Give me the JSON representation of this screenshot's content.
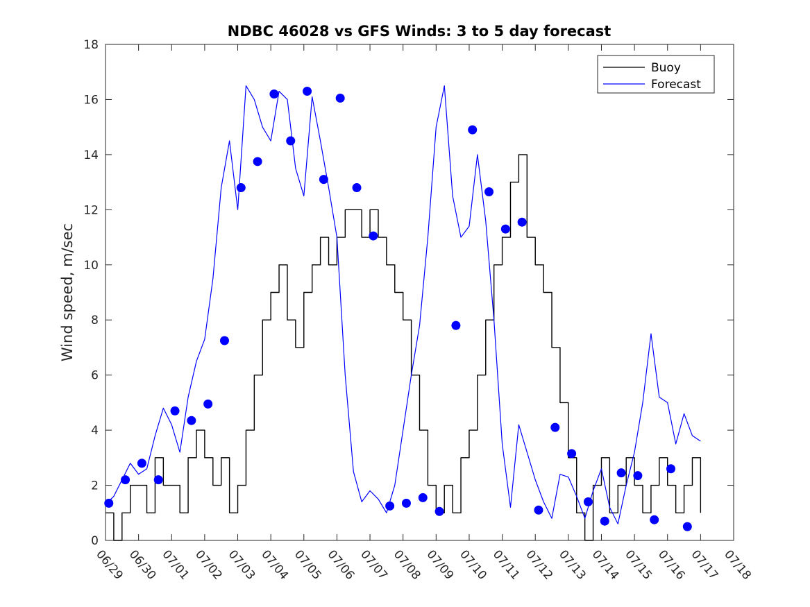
{
  "chart_data": {
    "type": "line",
    "title": "NDBC 46028 vs GFS Winds: 3 to 5 day forecast",
    "xlabel": "",
    "ylabel": "Wind speed, m/sec",
    "x_unit": "day",
    "x_ticks": [
      "06/29",
      "06/30",
      "07/01",
      "07/02",
      "07/03",
      "07/04",
      "07/05",
      "07/06",
      "07/07",
      "07/08",
      "07/09",
      "07/10",
      "07/11",
      "07/12",
      "07/13",
      "07/14",
      "07/15",
      "07/16",
      "07/17",
      "07/18"
    ],
    "xlim": [
      0,
      19
    ],
    "ylim": [
      0,
      18
    ],
    "y_ticks": [
      0,
      2,
      4,
      6,
      8,
      10,
      12,
      14,
      16,
      18
    ],
    "grid": false,
    "legend": {
      "placement": "top-right",
      "entries": [
        "Buoy",
        "Forecast"
      ]
    },
    "colors": {
      "buoy": "#000000",
      "forecast": "#0000ff",
      "axis": "#262626"
    },
    "series": [
      {
        "name": "Buoy",
        "step": true,
        "x": [
          0.0,
          0.25,
          0.5,
          0.75,
          1.0,
          1.25,
          1.5,
          1.75,
          2.0,
          2.25,
          2.5,
          2.75,
          3.0,
          3.25,
          3.5,
          3.75,
          4.0,
          4.25,
          4.5,
          4.75,
          5.0,
          5.25,
          5.5,
          5.75,
          6.0,
          6.25,
          6.5,
          6.75,
          7.0,
          7.25,
          7.5,
          7.75,
          8.0,
          8.25,
          8.5,
          8.75,
          9.0,
          9.25,
          9.5,
          9.75,
          10.0,
          10.25,
          10.5,
          10.75,
          11.0,
          11.25,
          11.5,
          11.75,
          12.0,
          12.25,
          12.5,
          12.75,
          13.0,
          13.25,
          13.5,
          13.75,
          14.0,
          14.25,
          14.5,
          14.75,
          15.0,
          15.25,
          15.5,
          15.75,
          16.0,
          16.25,
          16.5,
          16.75,
          17.0,
          17.25,
          17.5,
          17.75,
          18.0
        ],
        "y": [
          1,
          0,
          1,
          2,
          2,
          1,
          3,
          2,
          2,
          1,
          3,
          4,
          3,
          2,
          3,
          1,
          2,
          4,
          6,
          8,
          9,
          10,
          8,
          7,
          9,
          10,
          11,
          10,
          11,
          12,
          12,
          11,
          12,
          11,
          10,
          9,
          8,
          6,
          4,
          2,
          1,
          2,
          1,
          3,
          4,
          6,
          8,
          10,
          11,
          13,
          14,
          11,
          10,
          9,
          7,
          5,
          3,
          1,
          0,
          2,
          3,
          1,
          2,
          3,
          2,
          1,
          2,
          3,
          2,
          1,
          2,
          3,
          1
        ]
      },
      {
        "name": "Forecast",
        "x": [
          0.0,
          0.25,
          0.5,
          0.75,
          1.0,
          1.25,
          1.5,
          1.75,
          2.0,
          2.25,
          2.5,
          2.75,
          3.0,
          3.25,
          3.5,
          3.75,
          4.0,
          4.25,
          4.5,
          4.75,
          5.0,
          5.25,
          5.5,
          5.75,
          6.0,
          6.25,
          6.5,
          6.75,
          7.0,
          7.25,
          7.5,
          7.75,
          8.0,
          8.25,
          8.5,
          8.75,
          9.0,
          9.25,
          9.5,
          9.75,
          10.0,
          10.25,
          10.5,
          10.75,
          11.0,
          11.25,
          11.5,
          11.75,
          12.0,
          12.25,
          12.5,
          12.75,
          13.0,
          13.25,
          13.5,
          13.75,
          14.0,
          14.25,
          14.5,
          14.75,
          15.0,
          15.25,
          15.5,
          15.75,
          16.0,
          16.25,
          16.5,
          16.75,
          17.0,
          17.25,
          17.5,
          17.75,
          18.0
        ],
        "y": [
          1.3,
          1.6,
          2.2,
          2.8,
          2.4,
          2.6,
          3.8,
          4.8,
          4.2,
          3.2,
          5.2,
          6.5,
          7.3,
          9.5,
          12.8,
          14.5,
          12.0,
          16.5,
          16.0,
          15.0,
          14.5,
          16.3,
          16.0,
          13.5,
          12.5,
          16.1,
          14.5,
          12.8,
          11.0,
          6.0,
          2.5,
          1.4,
          1.8,
          1.5,
          1.0,
          2.0,
          4.0,
          6.0,
          7.8,
          11.0,
          15.0,
          16.5,
          12.5,
          11.0,
          11.4,
          14.0,
          11.6,
          8.0,
          3.5,
          1.2,
          4.2,
          3.2,
          2.2,
          1.4,
          0.8,
          2.4,
          2.3,
          1.6,
          0.8,
          1.8,
          2.6,
          1.2,
          0.6,
          2.0,
          3.2,
          5.0,
          7.5,
          5.2,
          5.0,
          3.5,
          4.6,
          3.8,
          3.6
        ]
      }
    ],
    "markers": {
      "series": "Forecast",
      "x": [
        0.1,
        0.6,
        1.1,
        1.6,
        2.1,
        2.6,
        3.1,
        3.6,
        4.1,
        4.6,
        5.1,
        5.6,
        6.1,
        6.6,
        7.1,
        7.6,
        8.1,
        8.6,
        9.1,
        9.6,
        10.1,
        10.6,
        11.1,
        11.6,
        12.1,
        12.6,
        13.1,
        13.6,
        14.1,
        14.6,
        15.1,
        15.6,
        16.1,
        16.6,
        17.1,
        17.6
      ],
      "y": [
        1.35,
        2.2,
        2.8,
        2.2,
        4.7,
        4.35,
        4.95,
        7.25,
        12.8,
        13.75,
        16.2,
        14.5,
        16.3,
        13.1,
        16.05,
        12.8,
        11.05,
        1.25,
        1.35,
        1.55,
        1.05,
        7.8,
        14.9,
        12.65,
        11.3,
        11.55,
        1.1,
        4.1,
        3.15,
        1.4,
        0.7,
        2.45,
        2.35,
        0.75,
        2.6,
        0.5
      ]
    }
  }
}
